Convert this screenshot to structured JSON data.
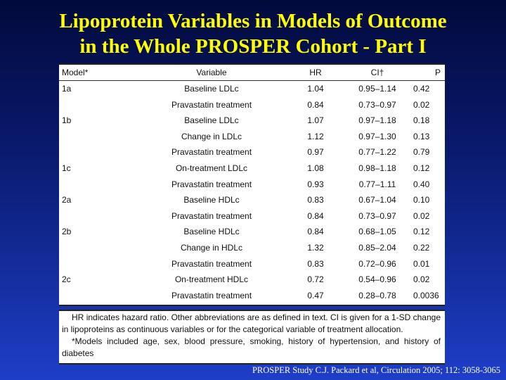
{
  "title": {
    "line1": "Lipoprotein Variables in Models of Outcome",
    "line2": "in the Whole PROSPER Cohort - Part I"
  },
  "table": {
    "headers": {
      "model": "Model*",
      "variable": "Variable",
      "hr": "HR",
      "ci": "CI†",
      "p": "P"
    },
    "rows": [
      {
        "model": "1a",
        "variable": "Baseline LDLc",
        "hr": "1.04",
        "ci": "0.95–1.14",
        "p": "0.42"
      },
      {
        "model": "",
        "variable": "Pravastatin treatment",
        "hr": "0.84",
        "ci": "0.73–0.97",
        "p": "0.02"
      },
      {
        "model": "1b",
        "variable": "Baseline LDLc",
        "hr": "1.07",
        "ci": "0.97–1.18",
        "p": "0.18"
      },
      {
        "model": "",
        "variable": "Change in LDLc",
        "hr": "1.12",
        "ci": "0.97–1.30",
        "p": "0.13"
      },
      {
        "model": "",
        "variable": "Pravastatin treatment",
        "hr": "0.97",
        "ci": "0.77–1.22",
        "p": "0.79"
      },
      {
        "model": "1c",
        "variable": "On-treatment LDLc",
        "hr": "1.08",
        "ci": "0.98–1.18",
        "p": "0.12"
      },
      {
        "model": "",
        "variable": "Pravastatin treatment",
        "hr": "0.93",
        "ci": "0.77–1.11",
        "p": "0.40"
      },
      {
        "model": "2a",
        "variable": "Baseline HDLc",
        "hr": "0.83",
        "ci": "0.67–1.04",
        "p": "0.10"
      },
      {
        "model": "",
        "variable": "Pravastatin treatment",
        "hr": "0.84",
        "ci": "0.73–0.97",
        "p": "0.02"
      },
      {
        "model": "2b",
        "variable": "Baseline HDLc",
        "hr": "0.84",
        "ci": "0.68–1.05",
        "p": "0.12"
      },
      {
        "model": "",
        "variable": "Change in HDLc",
        "hr": "1.32",
        "ci": "0.85–2.04",
        "p": "0.22"
      },
      {
        "model": "",
        "variable": "Pravastatin treatment",
        "hr": "0.83",
        "ci": "0.72–0.96",
        "p": "0.01"
      },
      {
        "model": "2c",
        "variable": "On-treatment HDLc",
        "hr": "0.72",
        "ci": "0.54–0.96",
        "p": "0.02"
      },
      {
        "model": "",
        "variable": "Pravastatin treatment",
        "hr": "0.47",
        "ci": "0.28–0.78",
        "p": "0.0036"
      }
    ]
  },
  "footnote": {
    "text1": "HR indicates hazard ratio. Other abbreviations are as defined in text. CI is given for a 1-SD change in lipoproteins as continuous variables or for the categorical variable of treatment allocation.",
    "text2": "*Models included age, sex, blood pressure, smoking, history of hypertension, and history of diabetes"
  },
  "source": "PROSPER Study C.J. Packard et al, Circulation 2005; 112: 3058-3065",
  "colors": {
    "title": "#ffff00",
    "background_top": "#020a3c",
    "background_bottom": "#1e3ec8"
  }
}
